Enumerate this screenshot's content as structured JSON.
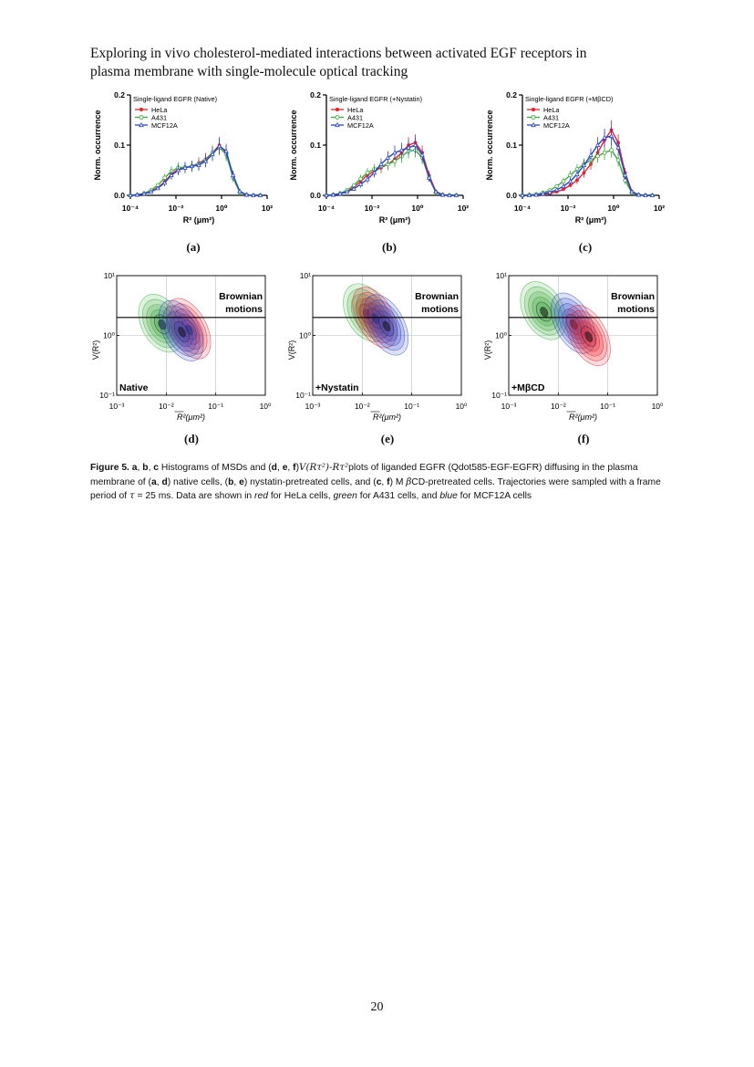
{
  "header": {
    "line1": "Exploring in vivo cholesterol-mediated interactions between activated EGF receptors in",
    "line2": "plasma membrane with single-molecule optical tracking"
  },
  "sublabels": [
    "(a)",
    "(b)",
    "(c)",
    "(d)",
    "(e)",
    "(f)"
  ],
  "caption": {
    "fig": "Figure 5.",
    "t1": "a",
    "t2": "b",
    "t3": "c",
    "t4": "Histograms of MSDs and (",
    "t5": "d",
    "t6": "e",
    "t7": "f",
    "t8": ")",
    "math1": "V(Rτ²)-Rτ²",
    "t9": "plots of liganded EGFR (Qdot585-EGF-EGFR) diffusing in the plasma membrane of (",
    "t10": "a",
    "t11": "d",
    "t12": ") native cells, (",
    "t13": "b",
    "t14": "e",
    "t15": ") nystatin-pretreated cells, and (",
    "t16": "c",
    "t17": "f",
    "t18": ") M",
    "math2": "β",
    "t19": "CD-pretreated cells. Trajectories were sampled with a frame period of",
    "math3": "τ",
    "t20": "= 25 ms. Data are shown in",
    "red": "red",
    "t21": "for HeLa cells,",
    "green": "green",
    "t22": "for A431 cells, and",
    "blue": "blue",
    "t23": "for MCF12A cells"
  },
  "page_number": "20",
  "colors": {
    "hela": "#e8202a",
    "a431": "#3aa83a",
    "mcf12a": "#2a44c8"
  },
  "chart_data": [
    {
      "type": "line",
      "title": "Single-ligand EGFR (Native)",
      "xlabel": "R² (μm²)",
      "ylabel": "Norm. occurrence",
      "xscale": "log",
      "xlim": [
        0.0001,
        100
      ],
      "ylim": [
        0,
        0.2
      ],
      "xticks": [
        "10⁻⁴",
        "10⁻²",
        "10⁰",
        "10²"
      ],
      "yticks": [
        "0.0",
        "0.1",
        "0.2"
      ],
      "legend": "top-left",
      "series": [
        {
          "name": "HeLa",
          "color": "#e8202a",
          "marker": "circle",
          "x": [
            0.0001,
            0.0002,
            0.0004,
            0.0008,
            0.0016,
            0.0032,
            0.0063,
            0.0126,
            0.025,
            0.05,
            0.1,
            0.2,
            0.4,
            0.8,
            1.6,
            3.2,
            6.3,
            12.6,
            25,
            50
          ],
          "y": [
            0,
            0.001,
            0.003,
            0.008,
            0.015,
            0.027,
            0.042,
            0.052,
            0.055,
            0.058,
            0.064,
            0.072,
            0.085,
            0.1,
            0.085,
            0.04,
            0.007,
            0.001,
            0,
            0
          ]
        },
        {
          "name": "A431",
          "color": "#3aa83a",
          "marker": "open-circle",
          "x": [
            0.0001,
            0.0002,
            0.0004,
            0.0008,
            0.0016,
            0.0032,
            0.0063,
            0.0126,
            0.025,
            0.05,
            0.1,
            0.2,
            0.4,
            0.8,
            1.6,
            3.2,
            6.3,
            12.6,
            25,
            50
          ],
          "y": [
            0,
            0.001,
            0.004,
            0.01,
            0.02,
            0.035,
            0.048,
            0.055,
            0.056,
            0.058,
            0.062,
            0.07,
            0.085,
            0.095,
            0.082,
            0.035,
            0.006,
            0.001,
            0,
            0
          ]
        },
        {
          "name": "MCF12A",
          "color": "#2a44c8",
          "marker": "open-triangle",
          "x": [
            0.0001,
            0.0002,
            0.0004,
            0.0008,
            0.0016,
            0.0032,
            0.0063,
            0.0126,
            0.025,
            0.05,
            0.1,
            0.2,
            0.4,
            0.8,
            1.6,
            3.2,
            6.3,
            12.6,
            25,
            50
          ],
          "y": [
            0,
            0.001,
            0.003,
            0.007,
            0.014,
            0.025,
            0.04,
            0.05,
            0.055,
            0.058,
            0.06,
            0.068,
            0.082,
            0.098,
            0.088,
            0.04,
            0.008,
            0.001,
            0,
            0
          ]
        }
      ]
    },
    {
      "type": "line",
      "title": "Single-ligand EGFR (+Nystatin)",
      "xlabel": "R² (μm²)",
      "ylabel": "Norm. occurrence",
      "xscale": "log",
      "xlim": [
        0.0001,
        100
      ],
      "ylim": [
        0,
        0.2
      ],
      "xticks": [
        "10⁻⁴",
        "10⁻²",
        "10⁰",
        "10²"
      ],
      "yticks": [
        "0.0",
        "0.1",
        "0.2"
      ],
      "legend": "top-left",
      "series": [
        {
          "name": "HeLa",
          "color": "#e8202a",
          "marker": "circle",
          "x": [
            0.0001,
            0.0002,
            0.0004,
            0.0008,
            0.0016,
            0.0032,
            0.0063,
            0.0126,
            0.025,
            0.05,
            0.1,
            0.2,
            0.4,
            0.8,
            1.6,
            3.2,
            6.3,
            12.6,
            25,
            50
          ],
          "y": [
            0,
            0.001,
            0.003,
            0.008,
            0.016,
            0.028,
            0.04,
            0.048,
            0.055,
            0.062,
            0.072,
            0.085,
            0.1,
            0.105,
            0.085,
            0.04,
            0.008,
            0.001,
            0,
            0
          ]
        },
        {
          "name": "A431",
          "color": "#3aa83a",
          "marker": "open-circle",
          "x": [
            0.0001,
            0.0002,
            0.0004,
            0.0008,
            0.0016,
            0.0032,
            0.0063,
            0.0126,
            0.025,
            0.05,
            0.1,
            0.2,
            0.4,
            0.8,
            1.6,
            3.2,
            6.3,
            12.6,
            25,
            50
          ],
          "y": [
            0,
            0.001,
            0.004,
            0.01,
            0.02,
            0.033,
            0.045,
            0.052,
            0.058,
            0.062,
            0.068,
            0.078,
            0.088,
            0.09,
            0.075,
            0.035,
            0.006,
            0.001,
            0,
            0
          ]
        },
        {
          "name": "MCF12A",
          "color": "#2a44c8",
          "marker": "open-triangle",
          "x": [
            0.0001,
            0.0002,
            0.0004,
            0.0008,
            0.0016,
            0.0032,
            0.0063,
            0.0126,
            0.025,
            0.05,
            0.1,
            0.2,
            0.4,
            0.8,
            1.6,
            3.2,
            6.3,
            12.6,
            25,
            50
          ],
          "y": [
            0,
            0.001,
            0.003,
            0.007,
            0.013,
            0.022,
            0.032,
            0.045,
            0.062,
            0.075,
            0.085,
            0.09,
            0.095,
            0.1,
            0.08,
            0.035,
            0.007,
            0.001,
            0,
            0
          ]
        }
      ]
    },
    {
      "type": "line",
      "title": "Single-ligand EGFR (+MβCD)",
      "xlabel": "R² (μm²)",
      "ylabel": "Norm. occurrence",
      "xscale": "log",
      "xlim": [
        0.0001,
        100
      ],
      "ylim": [
        0,
        0.2
      ],
      "xticks": [
        "10⁻⁴",
        "10⁻²",
        "10⁰",
        "10²"
      ],
      "yticks": [
        "0.0",
        "0.1",
        "0.2"
      ],
      "legend": "top-left",
      "series": [
        {
          "name": "HeLa",
          "color": "#e8202a",
          "marker": "circle",
          "x": [
            0.0001,
            0.0002,
            0.0004,
            0.0008,
            0.0016,
            0.0032,
            0.0063,
            0.0126,
            0.025,
            0.05,
            0.1,
            0.2,
            0.4,
            0.8,
            1.6,
            3.2,
            6.3,
            12.6,
            25,
            50
          ],
          "y": [
            0,
            0,
            0.001,
            0.002,
            0.004,
            0.007,
            0.012,
            0.02,
            0.03,
            0.045,
            0.062,
            0.085,
            0.11,
            0.13,
            0.105,
            0.045,
            0.008,
            0.001,
            0,
            0
          ]
        },
        {
          "name": "A431",
          "color": "#3aa83a",
          "marker": "open-circle",
          "x": [
            0.0001,
            0.0002,
            0.0004,
            0.0008,
            0.0016,
            0.0032,
            0.0063,
            0.0126,
            0.025,
            0.05,
            0.1,
            0.2,
            0.4,
            0.8,
            1.6,
            3.2,
            6.3,
            12.6,
            25,
            50
          ],
          "y": [
            0,
            0.001,
            0.002,
            0.005,
            0.01,
            0.018,
            0.028,
            0.04,
            0.052,
            0.062,
            0.07,
            0.078,
            0.085,
            0.09,
            0.07,
            0.03,
            0.005,
            0.001,
            0,
            0
          ]
        },
        {
          "name": "MCF12A",
          "color": "#2a44c8",
          "marker": "open-triangle",
          "x": [
            0.0001,
            0.0002,
            0.0004,
            0.0008,
            0.0016,
            0.0032,
            0.0063,
            0.0126,
            0.025,
            0.05,
            0.1,
            0.2,
            0.4,
            0.8,
            1.6,
            3.2,
            6.3,
            12.6,
            25,
            50
          ],
          "y": [
            0,
            0,
            0.001,
            0.003,
            0.006,
            0.011,
            0.018,
            0.028,
            0.042,
            0.06,
            0.08,
            0.1,
            0.115,
            0.118,
            0.095,
            0.04,
            0.007,
            0.001,
            0,
            0
          ]
        }
      ]
    },
    {
      "type": "heatmap",
      "subtype": "contour",
      "xlabel": "R²(μm²)",
      "ylabel": "V(R²)",
      "xscale": "log",
      "yscale": "log",
      "xlim": [
        0.001,
        1
      ],
      "ylim": [
        0.1,
        10
      ],
      "xticks": [
        "10⁻³",
        "10⁻²",
        "10⁻¹",
        "10⁰"
      ],
      "yticks": [
        "10⁻¹",
        "10⁰",
        "10¹"
      ],
      "threshold_y": 2,
      "annotation": "Brownian motions",
      "condition": "Native",
      "series": [
        {
          "name": "HeLa",
          "color": "#e8202a",
          "center": [
            0.028,
            1.3
          ]
        },
        {
          "name": "A431",
          "color": "#3aa83a",
          "center": [
            0.008,
            1.6
          ]
        },
        {
          "name": "MCF12A",
          "color": "#2a44c8",
          "center": [
            0.02,
            1.2
          ]
        }
      ]
    },
    {
      "type": "heatmap",
      "subtype": "contour",
      "xlabel": "R²(μm²)",
      "ylabel": "V(R²)",
      "xscale": "log",
      "yscale": "log",
      "xlim": [
        0.001,
        1
      ],
      "ylim": [
        0.1,
        10
      ],
      "xticks": [
        "10⁻³",
        "10⁻²",
        "10⁻¹",
        "10⁰"
      ],
      "yticks": [
        "10⁻¹",
        "10⁰",
        "10¹"
      ],
      "threshold_y": 2,
      "annotation": "Brownian motions",
      "condition": "+Nystatin",
      "series": [
        {
          "name": "HeLa",
          "color": "#e8202a",
          "center": [
            0.018,
            2.0
          ]
        },
        {
          "name": "A431",
          "color": "#3aa83a",
          "center": [
            0.012,
            2.4
          ]
        },
        {
          "name": "MCF12A",
          "color": "#2a44c8",
          "center": [
            0.03,
            1.5
          ]
        }
      ]
    },
    {
      "type": "heatmap",
      "subtype": "contour",
      "xlabel": "R²(μm²)",
      "ylabel": "V(R²)",
      "xscale": "log",
      "yscale": "log",
      "xlim": [
        0.001,
        1
      ],
      "ylim": [
        0.1,
        10
      ],
      "xticks": [
        "10⁻³",
        "10⁻²",
        "10⁻¹",
        "10⁰"
      ],
      "yticks": [
        "10⁻¹",
        "10⁰",
        "10¹"
      ],
      "threshold_y": 2,
      "annotation": "Brownian motions",
      "condition": "+MβCD",
      "series": [
        {
          "name": "HeLa",
          "color": "#e8202a",
          "center": [
            0.04,
            1.0
          ]
        },
        {
          "name": "A431",
          "color": "#3aa83a",
          "center": [
            0.005,
            2.6
          ]
        },
        {
          "name": "MCF12A",
          "color": "#2a44c8",
          "center": [
            0.02,
            1.6
          ]
        }
      ]
    }
  ]
}
